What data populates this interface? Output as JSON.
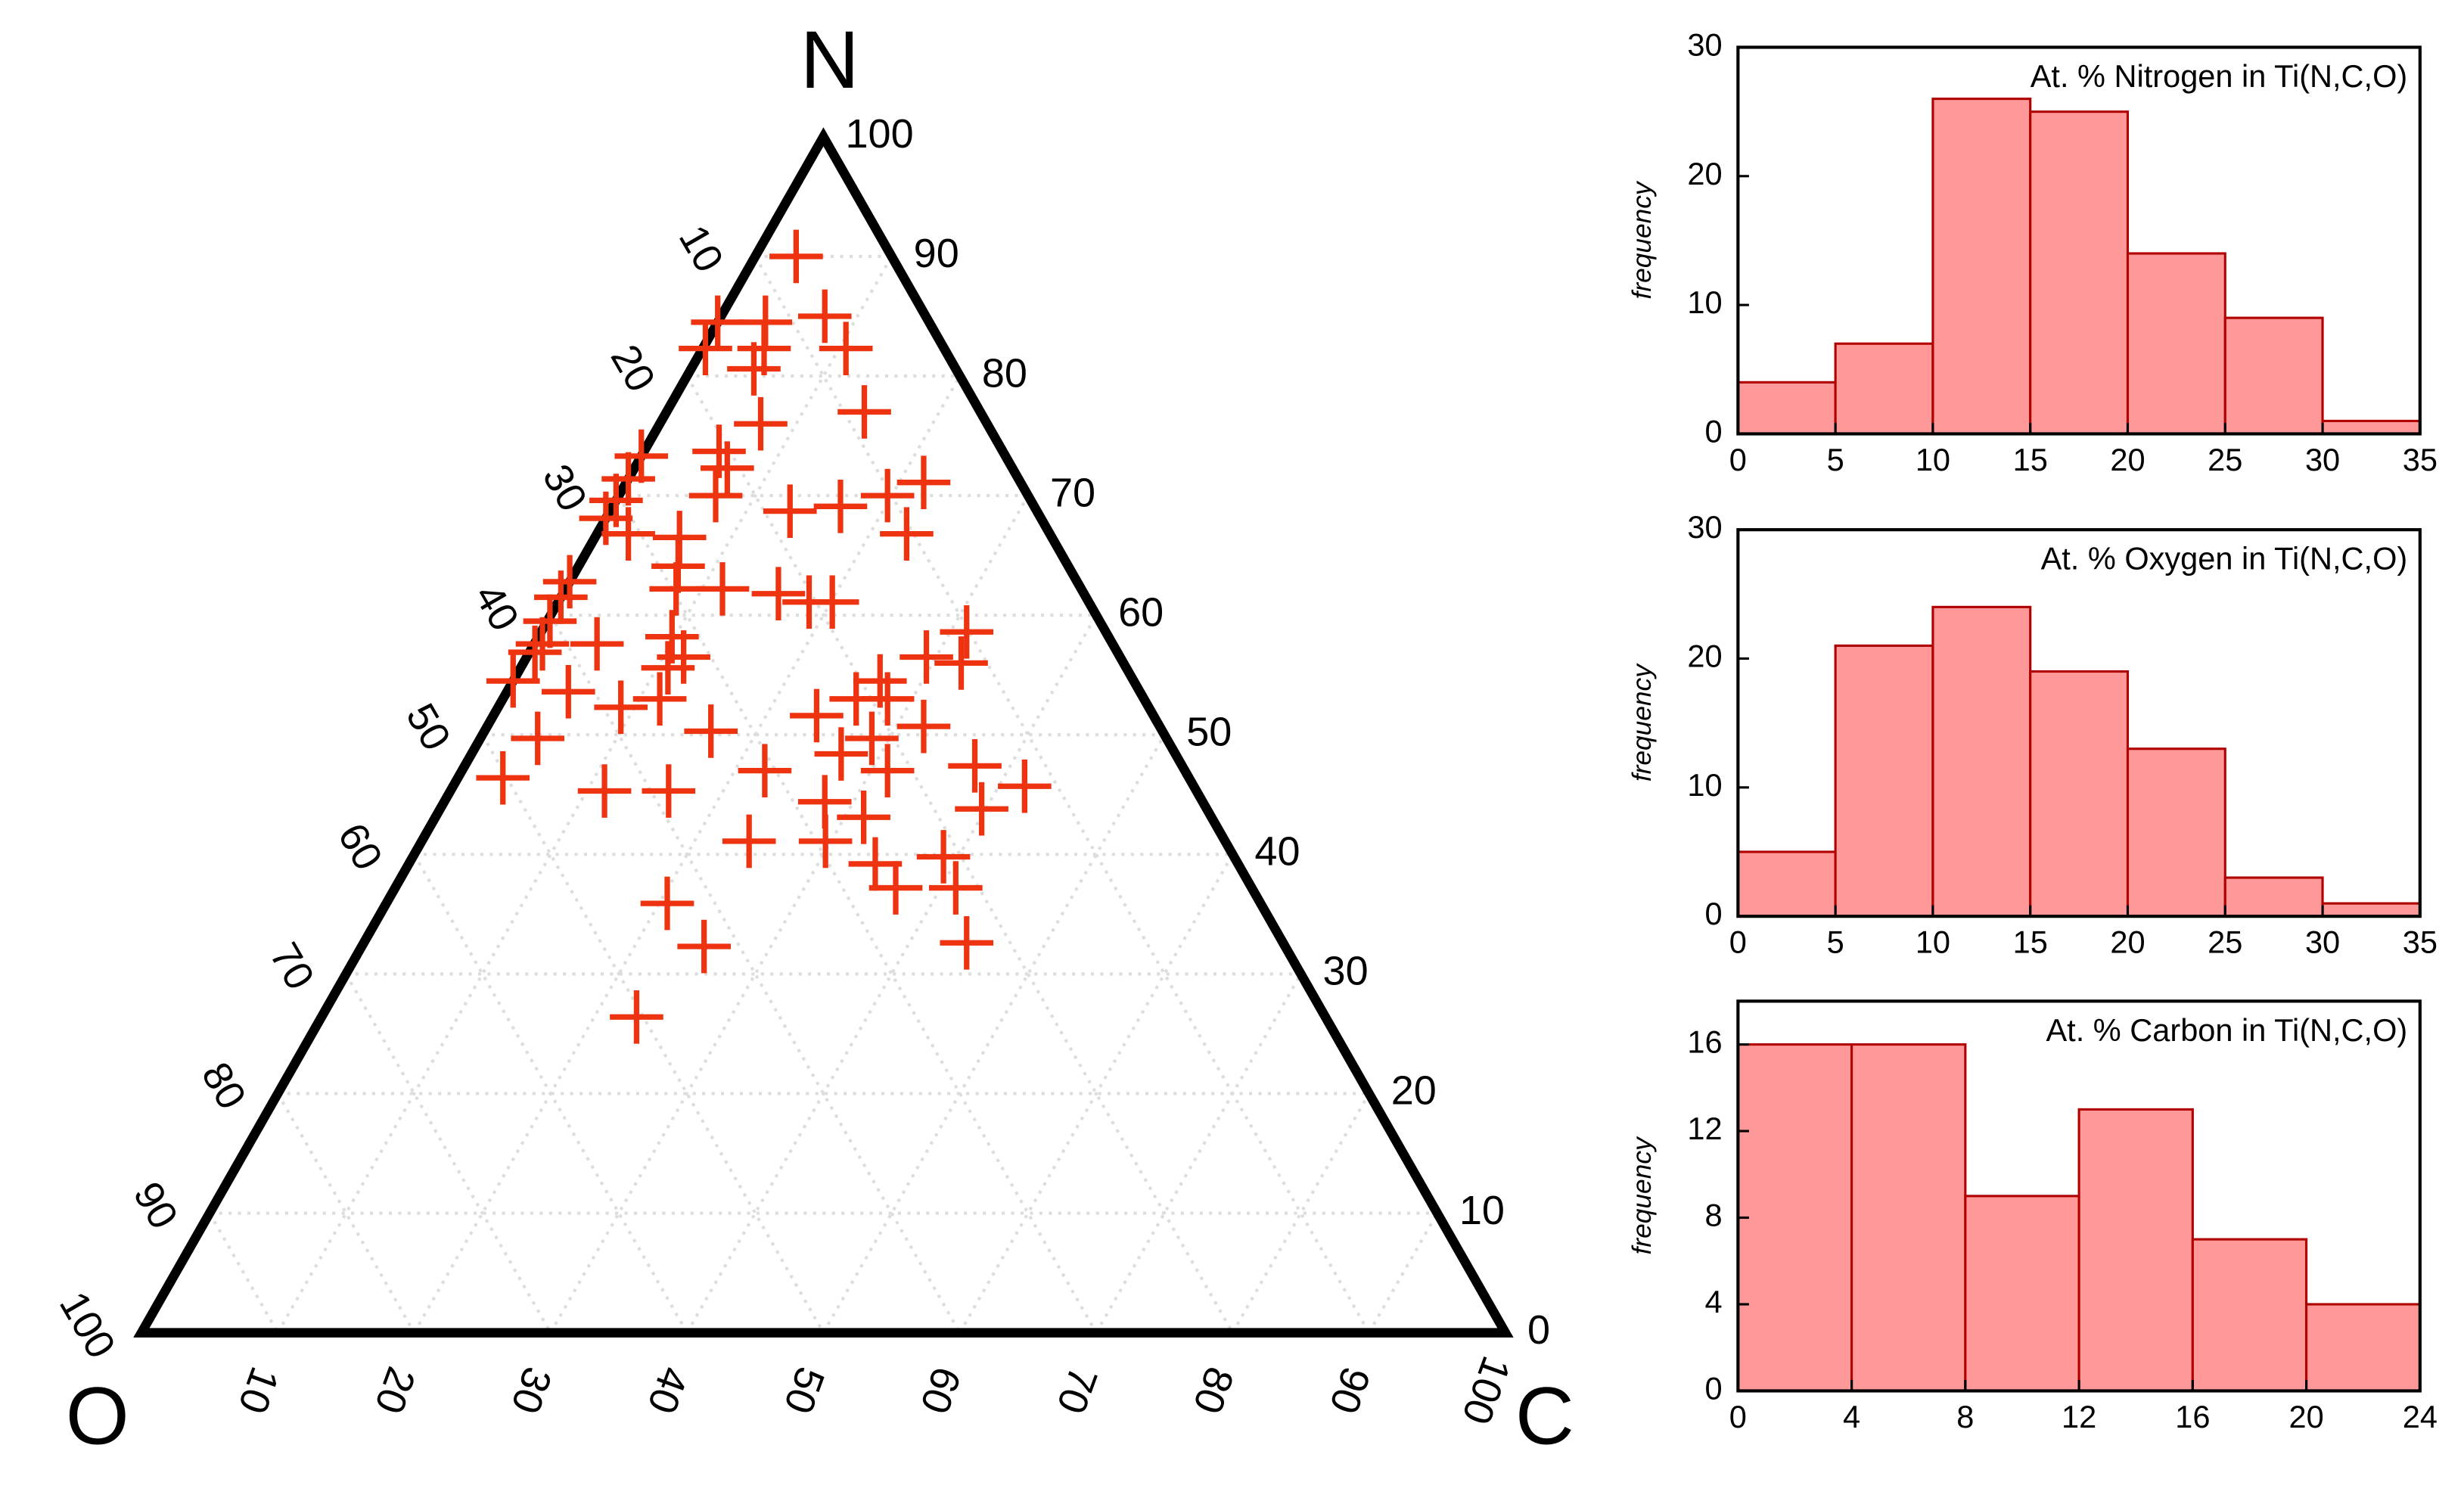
{
  "chart_data": [
    {
      "type": "ternary",
      "top_label": "N",
      "left_label": "O",
      "right_label": "C",
      "color": "#ee3311",
      "grid": true,
      "n_ticks": [
        0,
        10,
        20,
        30,
        40,
        50,
        60,
        70,
        80,
        90,
        100
      ],
      "o_ticks": [
        10,
        20,
        30,
        40,
        50,
        60,
        70,
        80,
        90,
        100
      ],
      "c_ticks": [
        10,
        20,
        30,
        40,
        50,
        60,
        70,
        80,
        90,
        100
      ],
      "N": [
        90,
        85,
        84.5,
        84.5,
        82.3,
        82.3,
        82.3,
        80.6,
        77,
        76,
        73.7,
        73.3,
        72.3,
        71.4,
        70,
        71.1,
        70,
        69.1,
        68.7,
        69.6,
        68.1,
        66.8,
        66.5,
        64.1,
        62.8,
        61.5,
        62.2,
        62.2,
        61.8,
        61.1,
        61.1,
        59.5,
        57.6,
        57.6,
        58.2,
        58.6,
        56.5,
        56,
        55.6,
        56.5,
        56.9,
        54.5,
        53.6,
        52.3,
        53,
        54.5,
        53,
        51.6,
        50.7,
        50.3,
        49.7,
        49.7,
        48.4,
        47.4,
        47,
        45.7,
        47,
        46.4,
        45.3,
        45.3,
        44.4,
        43.8,
        43.1,
        41.1,
        41.1,
        39.8,
        39.2,
        37.2,
        37.2,
        35.9,
        32.3,
        32.6,
        26.4,
        66.8,
        53
      ],
      "C": [
        3,
        7.6,
        3.5,
        0,
        0.2,
        4.5,
        10.5,
        4.6,
        14.5,
        7.4,
        5.5,
        0,
        6.8,
        0,
        7.1,
        21.8,
        19.7,
        16.7,
        13.2,
        0,
        0,
        22.7,
        6.2,
        7.3,
        0,
        0,
        8.1,
        11.5,
        15.8,
        18.4,
        20.1,
        0.2,
        0.6,
        4.6,
        9.8,
        31.2,
        29.3,
        32.1,
        10.8,
        11.5,
        0.4,
        0,
        4.5,
        9,
        11.5,
        26.9,
        25.9,
        23.7,
        32,
        16.6,
        4.2,
        28.7,
        27.1,
        37.4,
        31.2,
        41.9,
        22.2,
        3.3,
        11.3,
        16,
        27.9,
        39.7,
        31.4,
        24,
        29.6,
        38.9,
        34.2,
        36.7,
        41.1,
        20.6,
        25.1,
        44.2,
        23.1,
        2.3,
        28.2
      ],
      "O": [
        7,
        7.4,
        12,
        15.5,
        17.5,
        13.2,
        7.2,
        14.8,
        8.5,
        16.6,
        20.8,
        26.7,
        20.9,
        28.6,
        22.9,
        7.1,
        10.3,
        14.2,
        18.1,
        30.4,
        31.9,
        10.5,
        27.3,
        28.6,
        37.2,
        38.5,
        29.7,
        26.3,
        22.4,
        20.5,
        18.8,
        40.3,
        41.8,
        37.8,
        32,
        10.2,
        14.2,
        11.9,
        33.6,
        32,
        42.7,
        45.5,
        41.9,
        38.7,
        35.5,
        18.6,
        21.1,
        24.7,
        17.3,
        33.1,
        46.1,
        21.6,
        24.5,
        15.2,
        21.8,
        12.4,
        30.8,
        50.3,
        43.4,
        38.7,
        27.7,
        16.5,
        25.5,
        34.9,
        29.3,
        21.3,
        26.6,
        26.1,
        21.7,
        43.5,
        42.6,
        23.2,
        50.5,
        30.9,
        18.8
      ]
    },
    {
      "type": "histogram",
      "title": "At. % Nitrogen in Ti(N,C,O)",
      "ylabel": "frequency",
      "color": "#ff9999",
      "bins": [
        0,
        5,
        10,
        15,
        20,
        25,
        30,
        35
      ],
      "values": [
        4,
        7,
        26,
        25,
        14,
        9,
        1
      ],
      "xlim": [
        0,
        35
      ],
      "xticks": [
        0,
        5,
        10,
        15,
        20,
        25,
        30,
        35
      ],
      "ylim": [
        0,
        30
      ],
      "yticks": [
        0,
        10,
        20,
        30
      ]
    },
    {
      "type": "histogram",
      "title": "At. % Oxygen in Ti(N,C,O)",
      "ylabel": "frequency",
      "color": "#ff9999",
      "bins": [
        0,
        5,
        10,
        15,
        20,
        25,
        30,
        35
      ],
      "values": [
        5,
        21,
        24,
        19,
        13,
        3,
        1
      ],
      "xlim": [
        0,
        35
      ],
      "xticks": [
        0,
        5,
        10,
        15,
        20,
        25,
        30,
        35
      ],
      "ylim": [
        0,
        30
      ],
      "yticks": [
        0,
        10,
        20,
        30
      ]
    },
    {
      "type": "histogram",
      "title": "At. % Carbon in Ti(N,C,O)",
      "ylabel": "frequency",
      "color": "#ff9999",
      "bins": [
        0,
        4,
        8,
        12,
        16,
        20,
        24
      ],
      "values": [
        16,
        16,
        9,
        13,
        7,
        4
      ],
      "xlim": [
        0,
        24
      ],
      "xticks": [
        0,
        4,
        8,
        12,
        16,
        20,
        24
      ],
      "ylim": [
        0,
        18
      ],
      "yticks": [
        0,
        4,
        8,
        12,
        16
      ]
    }
  ]
}
